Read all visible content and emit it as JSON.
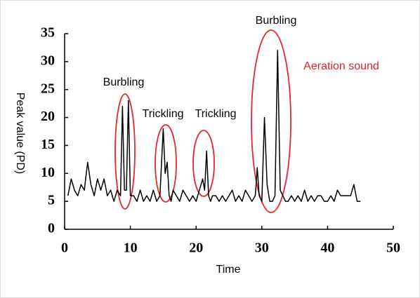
{
  "chart_data": {
    "type": "line",
    "x": [
      0.5,
      1,
      1.5,
      2,
      2.5,
      3,
      3.5,
      4,
      4.5,
      5,
      5.5,
      6,
      6.5,
      7,
      7.5,
      8,
      8.5,
      8.8,
      9.1,
      9.4,
      9.7,
      10,
      10.5,
      11,
      11.5,
      12,
      12.5,
      13,
      13.5,
      14,
      14.5,
      15,
      15.3,
      15.6,
      15.9,
      16.2,
      16.5,
      17,
      17.5,
      18,
      18.5,
      19,
      19.5,
      20,
      20.5,
      21,
      21.3,
      21.6,
      21.9,
      22.2,
      22.5,
      23,
      23.5,
      24,
      24.5,
      25,
      25.5,
      26,
      26.5,
      27,
      27.5,
      28,
      28.5,
      29,
      29.3,
      29.6,
      30,
      30.4,
      30.8,
      31.2,
      31.6,
      32,
      32.4,
      32.8,
      33.2,
      33.6,
      34,
      34.5,
      35,
      35.5,
      36,
      36.5,
      37,
      37.5,
      38,
      38.5,
      39,
      39.5,
      40,
      40.5,
      41,
      41.5,
      42,
      42.5,
      43,
      43.5,
      44,
      44.5,
      45
    ],
    "series": [
      {
        "color": "#000000",
        "values": [
          6,
          9,
          7,
          6,
          8,
          7,
          12,
          8,
          6,
          9,
          7,
          9,
          6,
          7,
          5,
          7,
          6,
          22,
          7,
          7,
          23,
          6,
          6,
          5,
          7,
          5,
          6,
          5,
          7,
          5,
          6,
          18,
          10,
          12,
          6,
          5,
          7,
          6,
          5,
          7,
          6,
          5,
          6,
          5,
          7,
          9,
          7,
          14,
          6,
          5,
          6,
          6,
          5,
          6,
          5,
          6,
          7,
          5,
          6,
          5,
          7,
          6,
          5,
          6,
          11,
          6,
          5,
          20,
          8,
          5,
          5,
          6,
          32,
          7,
          6,
          5,
          5,
          6,
          5,
          6,
          5,
          7,
          5,
          6,
          5,
          6,
          6,
          5,
          5,
          6,
          5,
          7,
          6,
          6,
          6,
          6,
          8,
          5,
          5
        ]
      }
    ],
    "xlim": [
      0,
      50
    ],
    "ylim": [
      0,
      35
    ],
    "xticks": [
      0,
      10,
      20,
      30,
      40,
      50
    ],
    "yticks": [
      0,
      5,
      10,
      15,
      20,
      25,
      30,
      35
    ],
    "xlabel": "Time",
    "ylabel": "Peak value (PD)",
    "annotations": [
      "Burbling",
      "Trickling",
      "Trickling",
      "Burbling",
      "Aeration sound"
    ]
  }
}
